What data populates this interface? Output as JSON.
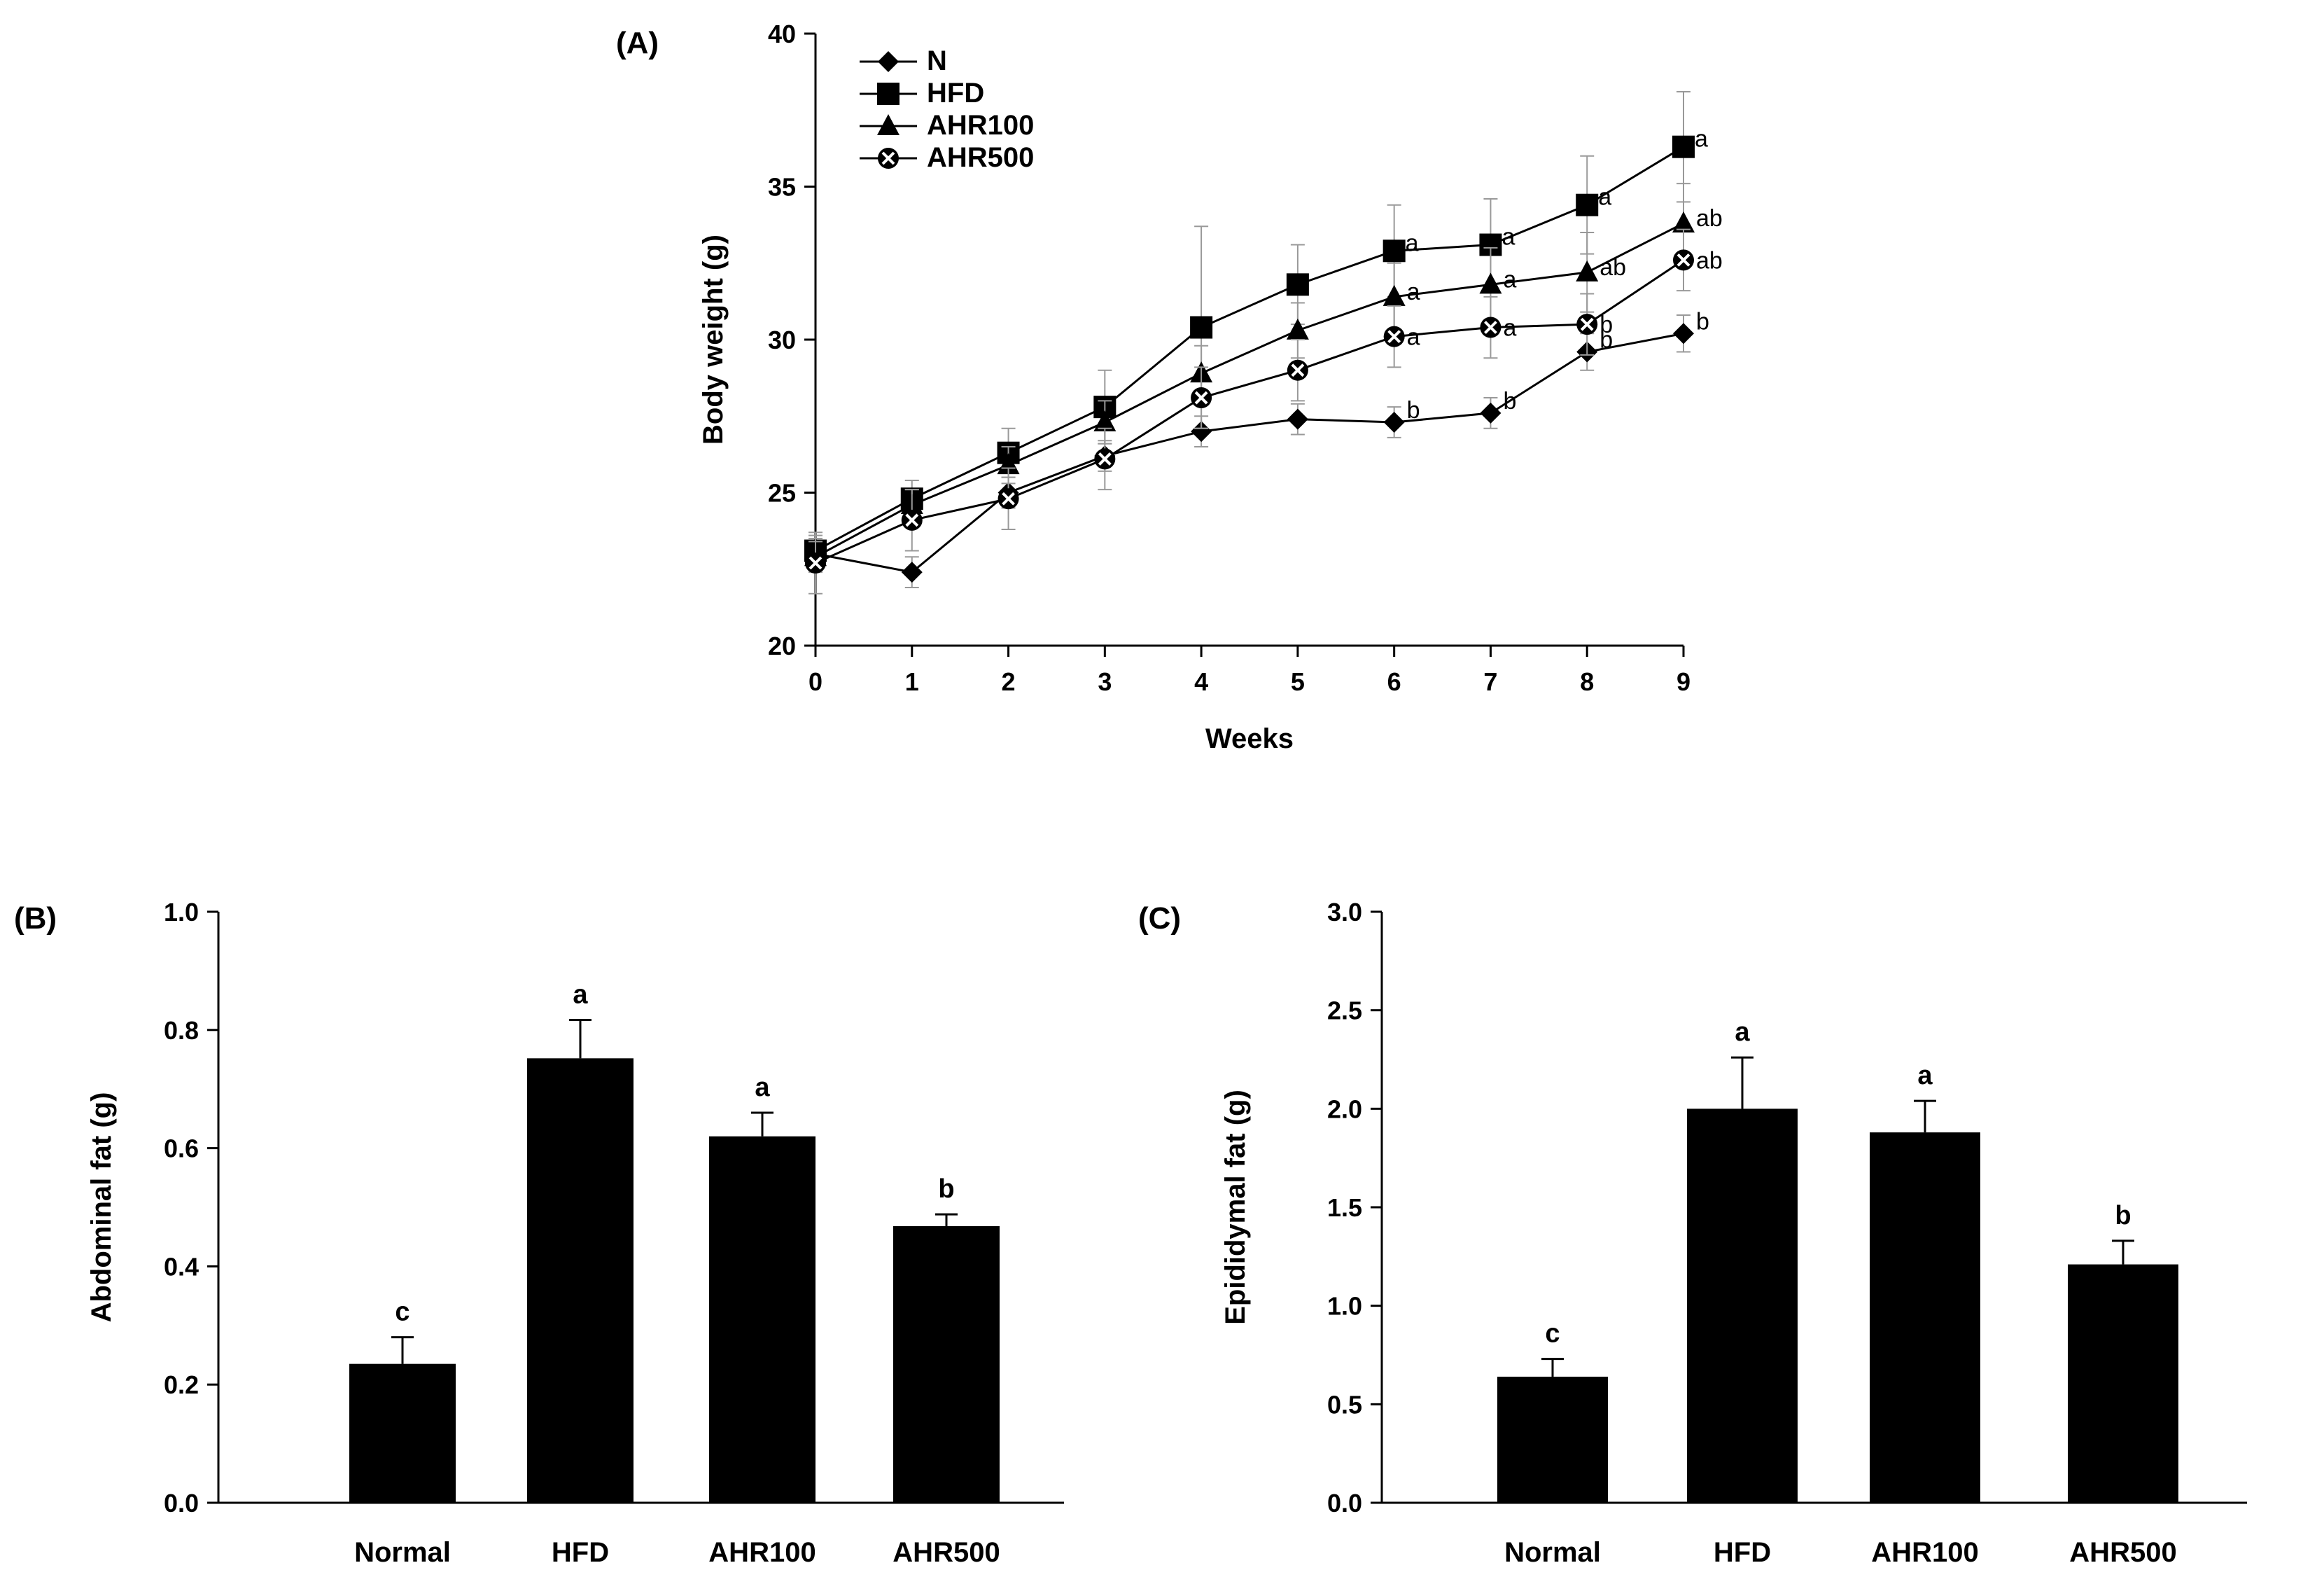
{
  "chart_data": [
    {
      "panel": "(A)",
      "type": "line",
      "xlabel": "Weeks",
      "ylabel": "Body weight (g)",
      "xlim": [
        0,
        9
      ],
      "ylim": [
        20,
        40
      ],
      "x_ticks": [
        "0",
        "1",
        "2",
        "3",
        "4",
        "5",
        "6",
        "7",
        "8",
        "9"
      ],
      "y_ticks": [
        "20",
        "25",
        "30",
        "35",
        "40"
      ],
      "legend_position": "top-left",
      "x": [
        0,
        1,
        2,
        3,
        4,
        5,
        6,
        7,
        8,
        9
      ],
      "series": [
        {
          "name": "N",
          "marker": "diamond",
          "values": [
            23.0,
            22.4,
            25.0,
            26.2,
            27.0,
            27.4,
            27.3,
            27.6,
            29.6,
            30.2
          ],
          "errors": [
            0.5,
            0.5,
            0.5,
            0.5,
            0.5,
            0.5,
            0.5,
            0.5,
            0.6,
            0.6
          ],
          "labels": [
            "",
            "",
            "",
            "",
            "",
            "",
            "b",
            "b",
            "b",
            "b"
          ]
        },
        {
          "name": "HFD",
          "marker": "square",
          "values": [
            23.1,
            24.8,
            26.3,
            27.8,
            30.4,
            31.8,
            32.9,
            33.1,
            34.4,
            36.3
          ],
          "errors": [
            0.5,
            0.6,
            0.8,
            1.2,
            3.3,
            1.3,
            1.5,
            1.5,
            1.6,
            1.8
          ],
          "labels": [
            "",
            "",
            "",
            "",
            "",
            "",
            "a",
            "a",
            "a",
            "a"
          ]
        },
        {
          "name": "AHR100",
          "marker": "triangle",
          "values": [
            22.9,
            24.6,
            25.9,
            27.3,
            28.9,
            30.3,
            31.4,
            31.8,
            32.2,
            33.8
          ],
          "errors": [
            0.5,
            0.5,
            0.6,
            0.7,
            0.9,
            0.9,
            1.1,
            1.2,
            1.3,
            1.3
          ],
          "labels": [
            "",
            "",
            "",
            "",
            "",
            "",
            "a",
            "a",
            "ab",
            "ab"
          ]
        },
        {
          "name": "AHR500",
          "marker": "x-circle",
          "values": [
            22.7,
            24.1,
            24.8,
            26.1,
            28.1,
            29.0,
            30.1,
            30.4,
            30.5,
            32.6
          ],
          "errors": [
            1.0,
            1.0,
            1.0,
            1.0,
            1.0,
            1.0,
            1.0,
            1.0,
            1.0,
            1.0
          ],
          "labels": [
            "",
            "",
            "",
            "",
            "",
            "",
            "a",
            "a",
            "b",
            "ab"
          ]
        }
      ]
    },
    {
      "panel": "(B)",
      "type": "bar",
      "categories": [
        "Normal",
        "HFD",
        "AHR100",
        "AHR500"
      ],
      "values": [
        0.235,
        0.752,
        0.62,
        0.468
      ],
      "errors": [
        0.045,
        0.065,
        0.04,
        0.02
      ],
      "labels": [
        "c",
        "a",
        "a",
        "b"
      ],
      "ylabel": "Abdominal fat (g)",
      "ylim": [
        0,
        1.0
      ],
      "y_ticks": [
        "0.0",
        "0.2",
        "0.4",
        "0.6",
        "0.8",
        "1.0"
      ]
    },
    {
      "panel": "(C)",
      "type": "bar",
      "categories": [
        "Normal",
        "HFD",
        "AHR100",
        "AHR500"
      ],
      "values": [
        0.64,
        2.0,
        1.88,
        1.21
      ],
      "errors": [
        0.09,
        0.26,
        0.16,
        0.12
      ],
      "labels": [
        "c",
        "a",
        "a",
        "b"
      ],
      "ylabel": "Epididymal fat (g)",
      "ylim": [
        0,
        3.0
      ],
      "y_ticks": [
        "0.0",
        "0.5",
        "1.0",
        "1.5",
        "2.0",
        "2.5",
        "3.0"
      ]
    }
  ]
}
